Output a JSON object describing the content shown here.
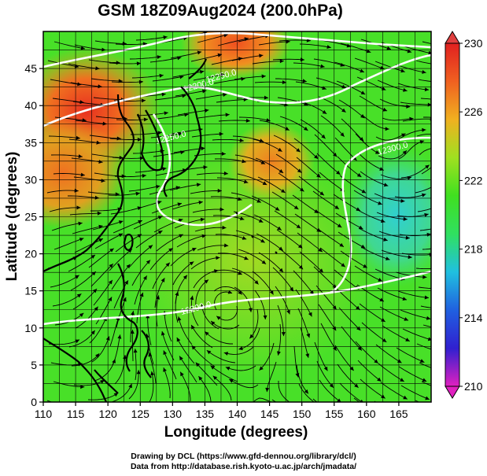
{
  "title": "GSM 18Z09Aug2024 (200.0hPa)",
  "xlabel": "Longitude (degrees)",
  "ylabel": "Latitude  (degrees)",
  "x_ticks": [
    "110",
    "115",
    "120",
    "125",
    "130",
    "135",
    "140",
    "145",
    "150",
    "155",
    "160",
    "165"
  ],
  "y_ticks": [
    "0",
    "5",
    "10",
    "15",
    "20",
    "25",
    "30",
    "35",
    "40",
    "45"
  ],
  "colorbar": {
    "ticks": [
      "210",
      "214",
      "218",
      "222",
      "226",
      "230"
    ],
    "range": [
      210,
      230
    ],
    "colors": [
      "#e020c0",
      "#3020d0",
      "#2060e0",
      "#20c0e0",
      "#30e060",
      "#40e020",
      "#a0e020",
      "#f0b020",
      "#f06020",
      "#e02020"
    ]
  },
  "contours": [
    {
      "label": "12200.0"
    },
    {
      "label": "12200.0"
    },
    {
      "label": "12250.0"
    },
    {
      "label": "12250.0"
    },
    {
      "label": "12300.0"
    }
  ],
  "credit": {
    "line1": "Drawing by DCL (https://www.gfd-dennou.org/library/dcl/)",
    "line2": "Data from http://database.rish.kyoto-u.ac.jp/arch/jmadata/"
  },
  "chart_data": {
    "type": "heatmap",
    "title": "GSM 18Z09Aug2024 (200.0hPa)",
    "xlabel": "Longitude (degrees)",
    "ylabel": "Latitude  (degrees)",
    "xlim": [
      110,
      170
    ],
    "ylim": [
      0,
      50
    ],
    "color_scale_range": [
      210,
      230
    ],
    "grid": true,
    "overlays": [
      "streamlines",
      "geopotential height contours",
      "coastlines"
    ]
  }
}
